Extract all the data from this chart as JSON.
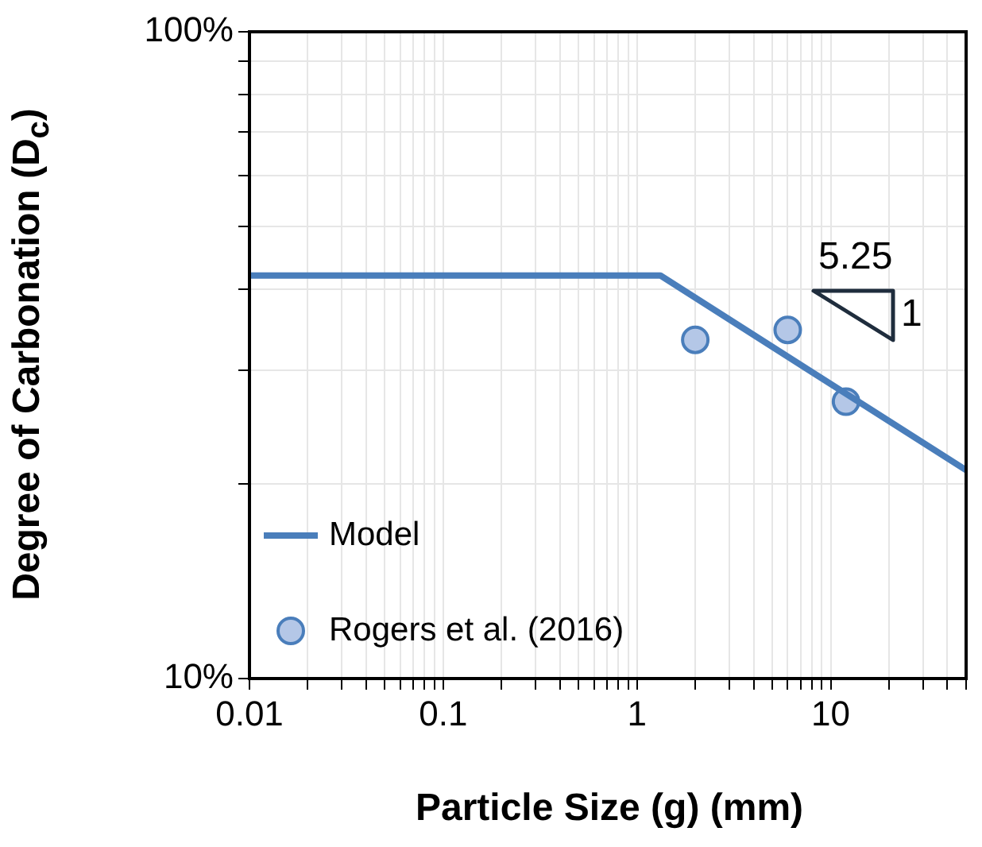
{
  "chart_data": {
    "type": "line",
    "xlabel": "Particle Size (g) (mm)",
    "ylabel": "Degree of Carbonation (D$_{c}$)",
    "log": "xy",
    "grid": true,
    "legend": "bottom left",
    "xlim": [
      0.01,
      50
    ],
    "ylim": [
      10,
      100
    ],
    "xticks": [
      0.01,
      {
        "value": 0.02,
        "label": null
      },
      {
        "value": 0.03,
        "label": null
      },
      {
        "value": 0.04,
        "label": null
      },
      {
        "value": 0.05,
        "label": null
      },
      {
        "value": 0.06,
        "label": null
      },
      {
        "value": 0.07,
        "label": null
      },
      {
        "value": 0.08,
        "label": null
      },
      {
        "value": 0.09,
        "label": null
      },
      0.1,
      {
        "value": 0.2,
        "label": null
      },
      {
        "value": 0.3,
        "label": null
      },
      {
        "value": 0.4,
        "label": null
      },
      {
        "value": 0.5,
        "label": null
      },
      {
        "value": 0.6,
        "label": null
      },
      {
        "value": 0.7,
        "label": null
      },
      {
        "value": 0.8,
        "label": null
      },
      {
        "value": 0.9,
        "label": null
      },
      1,
      {
        "value": 2,
        "label": null
      },
      {
        "value": 3,
        "label": null
      },
      {
        "value": 4,
        "label": null
      },
      {
        "value": 5,
        "label": null
      },
      {
        "value": 6,
        "label": null
      },
      {
        "value": 7,
        "label": null
      },
      {
        "value": 8,
        "label": null
      },
      {
        "value": 9,
        "label": null
      },
      10,
      {
        "value": 20,
        "label": null
      },
      {
        "value": 30,
        "label": null
      },
      {
        "value": 40,
        "label": null
      },
      {
        "value": 50,
        "label": null
      }
    ],
    "yticks": [
      {
        "value": 10,
        "label": "10%"
      },
      {
        "value": 20,
        "label": null
      },
      {
        "value": 30,
        "label": null
      },
      {
        "value": 40,
        "label": null
      },
      {
        "value": 50,
        "label": null
      },
      {
        "value": 60,
        "label": null
      },
      {
        "value": 70,
        "label": null
      },
      {
        "value": 80,
        "label": null
      },
      {
        "value": 90,
        "label": null
      },
      {
        "value": 100,
        "label": "100%"
      }
    ],
    "series": [
      {
        "name": "Model",
        "color": "#4a7ebb",
        "marker": "none",
        "line_style": "solid",
        "x": [
          0.01,
          1.32,
          50
        ],
        "values": [
          42,
          42,
          21
        ]
      },
      {
        "name": "Rogers et al. (2016)",
        "type": "scatter",
        "color": "#b4c7e7",
        "marker": "circle",
        "x": [
          2,
          6,
          12
        ],
        "values": [
          33.4,
          34.6,
          26.8
        ]
      }
    ],
    "annotations": [
      "5.25",
      "1"
    ]
  }
}
